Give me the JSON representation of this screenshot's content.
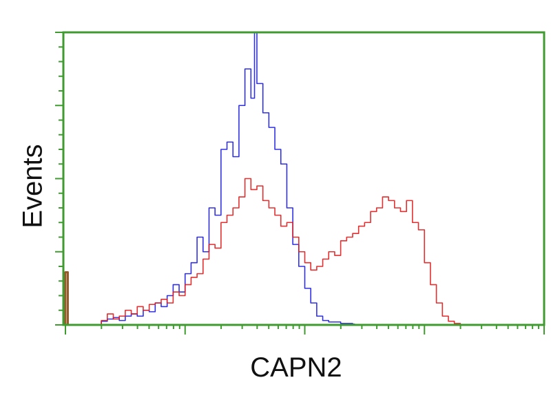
{
  "chart_data": {
    "type": "line",
    "title": "",
    "xlabel": "CAPN2",
    "ylabel": "Events",
    "x_scale": "log",
    "xlim": [
      0,
      4
    ],
    "ylim": [
      0,
      4
    ],
    "grid": false,
    "legend": "none",
    "frame_color": "#3f9a2f",
    "series": [
      {
        "color": "#1a1ae0",
        "x": [
          0.3,
          0.35,
          0.4,
          0.45,
          0.5,
          0.55,
          0.6,
          0.65,
          0.7,
          0.75,
          0.8,
          0.85,
          0.9,
          0.95,
          1.0,
          1.05,
          1.1,
          1.15,
          1.2,
          1.25,
          1.3,
          1.35,
          1.4,
          1.45,
          1.5,
          1.55,
          1.58,
          1.6,
          1.65,
          1.7,
          1.75,
          1.8,
          1.85,
          1.9,
          1.95,
          2.0,
          2.05,
          2.1,
          2.15,
          2.2,
          2.3,
          2.4
        ],
        "y": [
          0.05,
          0.08,
          0.1,
          0.06,
          0.12,
          0.15,
          0.12,
          0.2,
          0.18,
          0.3,
          0.25,
          0.4,
          0.55,
          0.45,
          0.7,
          0.85,
          1.2,
          1.0,
          1.6,
          1.5,
          2.4,
          2.5,
          2.3,
          3.0,
          3.5,
          3.1,
          4.0,
          3.3,
          2.9,
          2.7,
          2.4,
          2.2,
          1.6,
          1.1,
          0.8,
          0.5,
          0.3,
          0.12,
          0.06,
          0.04,
          0.02,
          0.01
        ]
      },
      {
        "color": "#e01818",
        "x": [
          0.3,
          0.35,
          0.4,
          0.45,
          0.5,
          0.55,
          0.6,
          0.65,
          0.7,
          0.75,
          0.8,
          0.85,
          0.9,
          0.95,
          1.0,
          1.05,
          1.1,
          1.15,
          1.2,
          1.25,
          1.3,
          1.35,
          1.4,
          1.45,
          1.5,
          1.55,
          1.6,
          1.65,
          1.7,
          1.75,
          1.8,
          1.85,
          1.9,
          1.95,
          2.0,
          2.05,
          2.1,
          2.15,
          2.2,
          2.25,
          2.3,
          2.35,
          2.4,
          2.45,
          2.5,
          2.55,
          2.6,
          2.65,
          2.7,
          2.75,
          2.8,
          2.85,
          2.9,
          2.95,
          3.0,
          3.05,
          3.1,
          3.15,
          3.2,
          3.25,
          3.3
        ],
        "y": [
          0.06,
          0.15,
          0.08,
          0.12,
          0.2,
          0.15,
          0.25,
          0.2,
          0.28,
          0.3,
          0.35,
          0.3,
          0.45,
          0.4,
          0.55,
          0.65,
          0.7,
          0.9,
          1.1,
          1.05,
          1.4,
          1.5,
          1.6,
          1.75,
          2.0,
          1.85,
          1.9,
          1.7,
          1.6,
          1.5,
          1.35,
          1.4,
          1.2,
          1.0,
          0.85,
          0.75,
          0.8,
          0.9,
          1.0,
          0.95,
          1.15,
          1.2,
          1.25,
          1.35,
          1.4,
          1.55,
          1.6,
          1.75,
          1.7,
          1.6,
          1.55,
          1.7,
          1.4,
          1.3,
          0.85,
          0.55,
          0.3,
          0.12,
          0.05,
          0.02,
          0.0
        ]
      },
      {
        "color": "#8a4a14",
        "x": [
          0.0,
          0.02
        ],
        "y": [
          0.72,
          0.0
        ]
      }
    ]
  }
}
